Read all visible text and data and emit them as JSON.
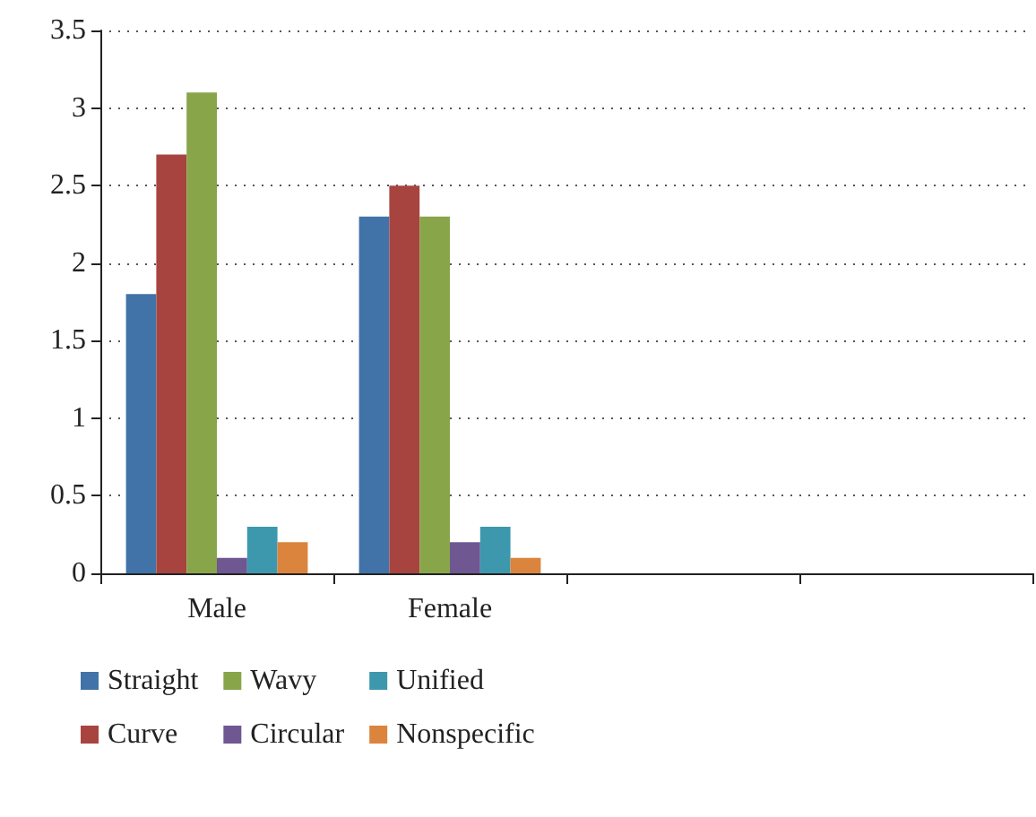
{
  "chart_data": {
    "type": "bar",
    "categories": [
      "Male",
      "Female",
      null,
      null
    ],
    "series": [
      {
        "name": "Straight",
        "color": "#4173a8",
        "values": [
          1.8,
          2.3,
          null,
          null
        ]
      },
      {
        "name": "Curve",
        "color": "#a84440",
        "values": [
          2.7,
          2.5,
          null,
          null
        ]
      },
      {
        "name": "Wavy",
        "color": "#89a54a",
        "values": [
          3.1,
          2.3,
          null,
          null
        ]
      },
      {
        "name": "Circular",
        "color": "#6f5792",
        "values": [
          0.1,
          0.2,
          null,
          null
        ]
      },
      {
        "name": "Unified",
        "color": "#3d98ae",
        "values": [
          0.3,
          0.3,
          null,
          null
        ]
      },
      {
        "name": "Nonspecific",
        "color": "#db843d",
        "values": [
          0.2,
          0.1,
          null,
          null
        ]
      }
    ],
    "ylim": [
      0,
      3.5
    ],
    "yticks": [
      0,
      0.5,
      1,
      1.5,
      2,
      2.5,
      3,
      3.5
    ],
    "grid": "y",
    "legend": "bottom"
  }
}
